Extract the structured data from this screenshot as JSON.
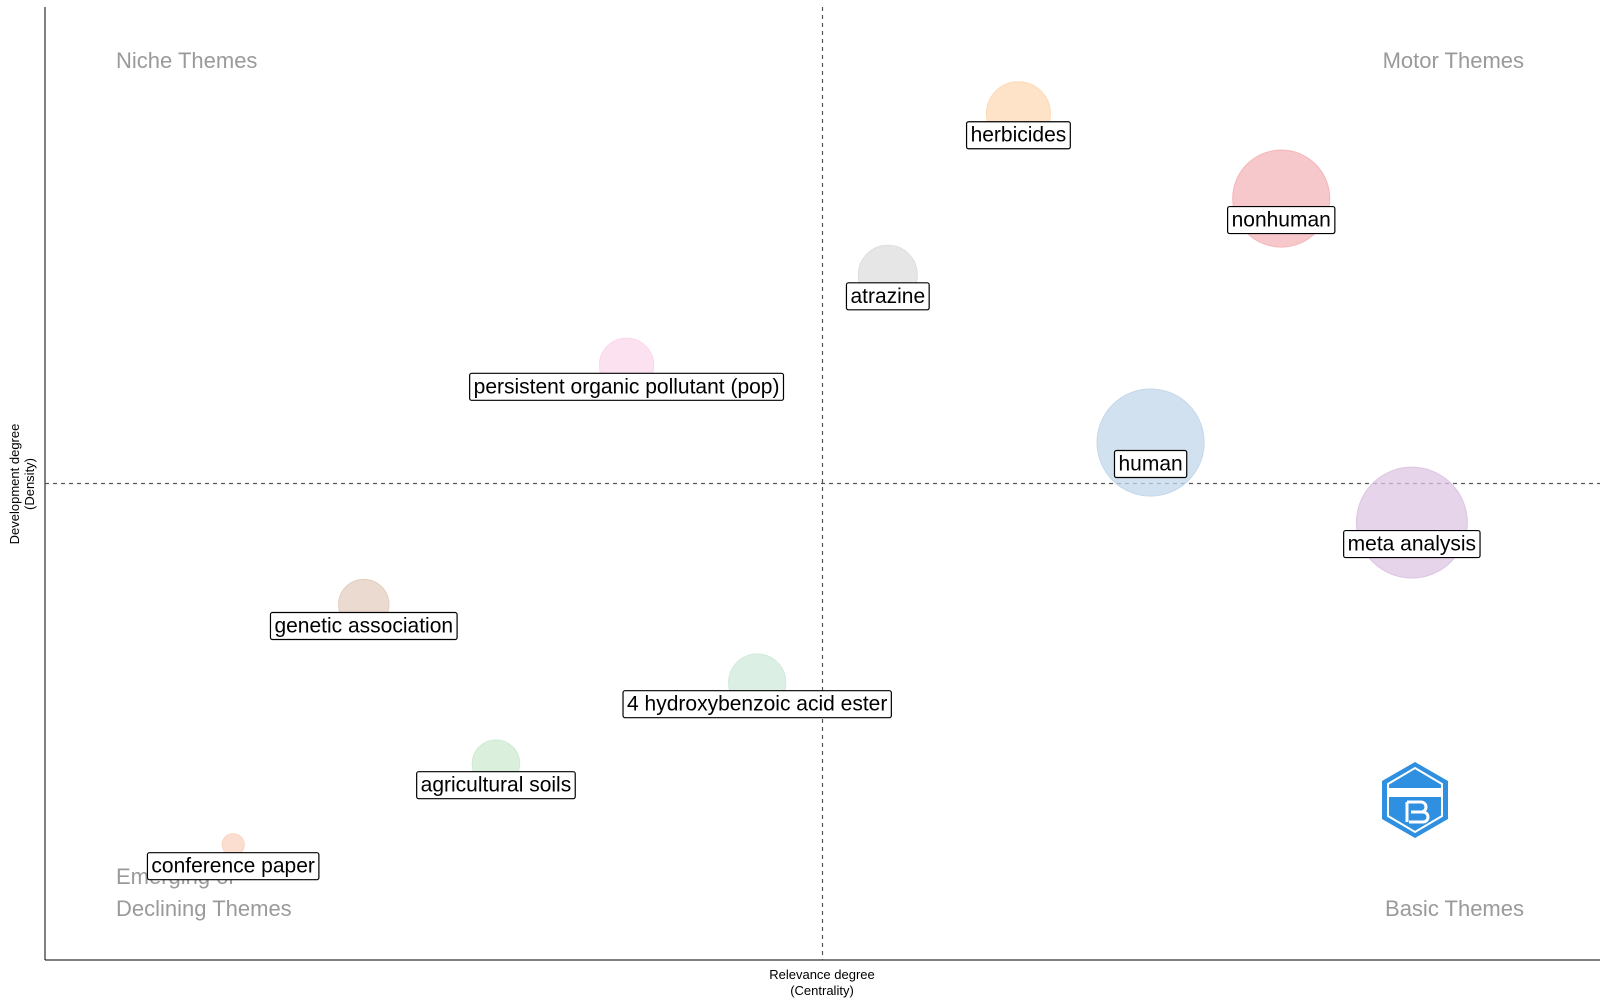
{
  "chart_data": {
    "type": "scatter",
    "style": "bubble",
    "title": "",
    "xlabel": "Relevance degree",
    "xlabel_sub": "(Centrality)",
    "ylabel": "Development degree",
    "ylabel_sub": "(Density)",
    "xlim": [
      0,
      100
    ],
    "ylim": [
      0,
      100
    ],
    "x_ref": 50,
    "y_ref": 50,
    "grid": false,
    "ticks": false,
    "quadrants": {
      "top_left": "Niche Themes",
      "top_right": "Motor Themes",
      "bottom_left_line1": "Emerging or",
      "bottom_left_line2": "Declining Themes",
      "bottom_right": "Basic Themes"
    },
    "points": [
      {
        "label": "herbicides",
        "x": 62.6,
        "y": 88.8,
        "size": 1.0,
        "color": "#fdd9b5"
      },
      {
        "label": "nonhuman",
        "x": 79.5,
        "y": 79.9,
        "size": 2.3,
        "color": "#f4b6b9"
      },
      {
        "label": "atrazine",
        "x": 54.2,
        "y": 71.9,
        "size": 0.85,
        "color": "#dedede"
      },
      {
        "label": "persistent organic pollutant (pop)",
        "x": 37.4,
        "y": 62.4,
        "size": 0.72,
        "color": "#fbd7ec"
      },
      {
        "label": "human",
        "x": 71.1,
        "y": 54.3,
        "size": 2.8,
        "color": "#c3d7ea"
      },
      {
        "label": "meta analysis",
        "x": 87.9,
        "y": 45.9,
        "size": 3.0,
        "color": "#dcc5e3"
      },
      {
        "label": "genetic association",
        "x": 20.5,
        "y": 37.3,
        "size": 0.62,
        "color": "#e4cdbf"
      },
      {
        "label": "4 hydroxybenzoic acid ester",
        "x": 45.8,
        "y": 29.1,
        "size": 0.8,
        "color": "#cfe9dc"
      },
      {
        "label": "agricultural soils",
        "x": 29.0,
        "y": 20.6,
        "size": 0.55,
        "color": "#cdebd2"
      },
      {
        "label": "conference paper",
        "x": 12.1,
        "y": 12.1,
        "size": 0.12,
        "color": "#fbd3c2"
      }
    ]
  }
}
